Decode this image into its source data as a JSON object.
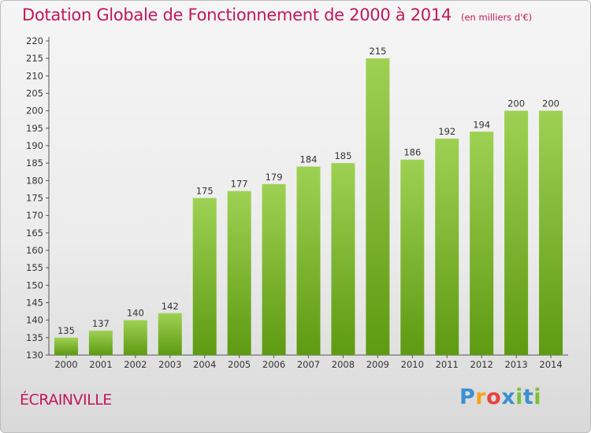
{
  "header": {
    "title": "Dotation Globale de Fonctionnement de 2000 à 2014",
    "subtitle": "(en milliers d'€)"
  },
  "commune": "ÉCRAINVILLE",
  "logo": {
    "letters": [
      "P",
      "r",
      "o",
      "x",
      "i",
      "t",
      "i"
    ],
    "colors": [
      "#3c8fd0",
      "#f7a21b",
      "#e8433f",
      "#3c8fd0",
      "#7cbf3a",
      "#3c8fd0",
      "#7cbf3a"
    ]
  },
  "chart_data": {
    "type": "bar",
    "title": "Dotation Globale de Fonctionnement de 2000 à 2014",
    "subtitle": "(en milliers d'€)",
    "xlabel": "",
    "ylabel": "",
    "categories": [
      "2000",
      "2001",
      "2002",
      "2003",
      "2004",
      "2005",
      "2006",
      "2007",
      "2008",
      "2009",
      "2010",
      "2011",
      "2012",
      "2013",
      "2014"
    ],
    "values": [
      135,
      137,
      140,
      142,
      175,
      177,
      179,
      184,
      185,
      215,
      186,
      192,
      194,
      200,
      200
    ],
    "ylim": [
      130,
      220
    ],
    "ytick_step": 5,
    "grid": false,
    "bar_color": "#8cc63f"
  }
}
